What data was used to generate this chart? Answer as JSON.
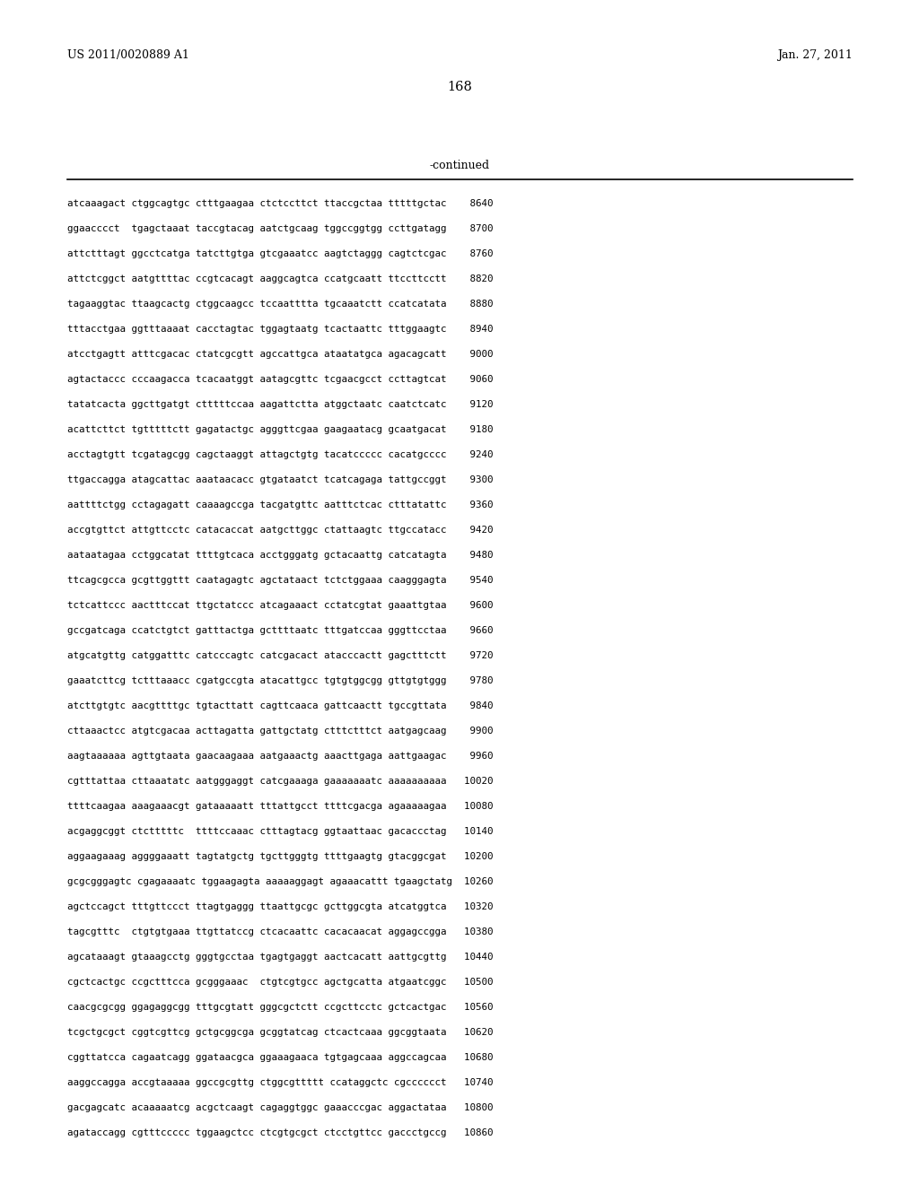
{
  "header_left": "US 2011/0020889 A1",
  "header_right": "Jan. 27, 2011",
  "page_number": "168",
  "continued_label": "-continued",
  "background_color": "#ffffff",
  "text_color": "#000000",
  "font_size_header": 9.0,
  "font_size_page": 10.5,
  "font_size_continued": 9.0,
  "font_size_seq": 7.8,
  "sequence_lines": [
    "atcaaagact ctggcagtgc ctttgaagaa ctctccttct ttaccgctaa tttttgctac    8640",
    "ggaacccct  tgagctaaat taccgtacag aatctgcaag tggccggtgg ccttgatagg    8700",
    "attctttagt ggcctcatga tatcttgtga gtcgaaatcc aagtctaggg cagtctcgac    8760",
    "attctcggct aatgttttac ccgtcacagt aaggcagtca ccatgcaatt ttccttcctt    8820",
    "tagaaggtac ttaagcactg ctggcaagcc tccaatttta tgcaaatctt ccatcatata    8880",
    "tttacctgaa ggtttaaaat cacctagtac tggagtaatg tcactaattc tttggaagtc    8940",
    "atcctgagtt atttcgacac ctatcgcgtt agccattgca ataatatgca agacagcatt    9000",
    "agtactaccc cccaagacca tcacaatggt aatagcgttc tcgaacgcct ccttagtcat    9060",
    "tatatcacta ggcttgatgt ctttttccaa aagattctta atggctaatc caatctcatc    9120",
    "acattcttct tgtttttctt gagatactgc agggttcgaa gaagaatacg gcaatgacat    9180",
    "acctagtgtt tcgatagcgg cagctaaggt attagctgtg tacatccccc cacatgcccc    9240",
    "ttgaccagga atagcattac aaataacacc gtgataatct tcatcagaga tattgccggt    9300",
    "aattttctgg cctagagatt caaaagccga tacgatgttc aatttctcac ctttatattc    9360",
    "accgtgttct attgttcctc catacaccat aatgcttggc ctattaagtc ttgccatacc    9420",
    "aataatagaa cctggcatat ttttgtcaca acctgggatg gctacaattg catcatagta    9480",
    "ttcagcgcca gcgttggttt caatagagtc agctataact tctctggaaa caagggagta    9540",
    "tctcattccc aactttccat ttgctatccc atcagaaact cctatcgtat gaaattgtaa    9600",
    "gccgatcaga ccatctgtct gatttactga gcttttaatc tttgatccaa gggttcctaa    9660",
    "atgcatgttg catggatttc catcccagtc catcgacact atacccactt gagctttctt    9720",
    "gaaatcttcg tctttaaacc cgatgccgta atacattgcc tgtgtggcgg gttgtgtggg    9780",
    "atcttgtgtc aacgttttgc tgtacttatt cagttcaaca gattcaactt tgccgttata    9840",
    "cttaaactcc atgtcgacaa acttagatta gattgctatg ctttctttct aatgagcaag    9900",
    "aagtaaaaaa agttgtaata gaacaagaaa aatgaaactg aaacttgaga aattgaagac    9960",
    "cgtttattaa cttaaatatc aatgggaggt catcgaaaga gaaaaaaatc aaaaaaaaaa   10020",
    "ttttcaagaa aaagaaacgt gataaaaatt tttattgcct ttttcgacga agaaaaagaa   10080",
    "acgaggcggt ctctttttc  ttttccaaac ctttagtacg ggtaattaac gacaccctag   10140",
    "aggaagaaag aggggaaatt tagtatgctg tgcttgggtg ttttgaagtg gtacggcgat   10200",
    "gcgcgggagtc cgagaaaatc tggaagagta aaaaaggagt agaaacattt tgaagctatg  10260",
    "agctccagct tttgttccct ttagtgaggg ttaattgcgc gcttggcgta atcatggtca   10320",
    "tagcgtttc  ctgtgtgaaa ttgttatccg ctcacaattc cacacaacat aggagccgga   10380",
    "agcataaagt gtaaagcctg gggtgcctaa tgagtgaggt aactcacatt aattgcgttg   10440",
    "cgctcactgc ccgctttcca gcgggaaac  ctgtcgtgcc agctgcatta atgaatcggc   10500",
    "caacgcgcgg ggagaggcgg tttgcgtatt gggcgctctt ccgcttcctc gctcactgac   10560",
    "tcgctgcgct cggtcgttcg gctgcggcga gcggtatcag ctcactcaaa ggcggtaata   10620",
    "cggttatcca cagaatcagg ggataacgca ggaaagaaca tgtgagcaaa aggccagcaa   10680",
    "aaggccagga accgtaaaaa ggccgcgttg ctggcgttttt ccataggctc cgcccccct   10740",
    "gacgagcatc acaaaaatcg acgctcaagt cagaggtggc gaaacccgac aggactataa   10800",
    "agataccagg cgtttccccc tggaagctcc ctcgtgcgct ctcctgttcc gaccctgccg   10860"
  ]
}
